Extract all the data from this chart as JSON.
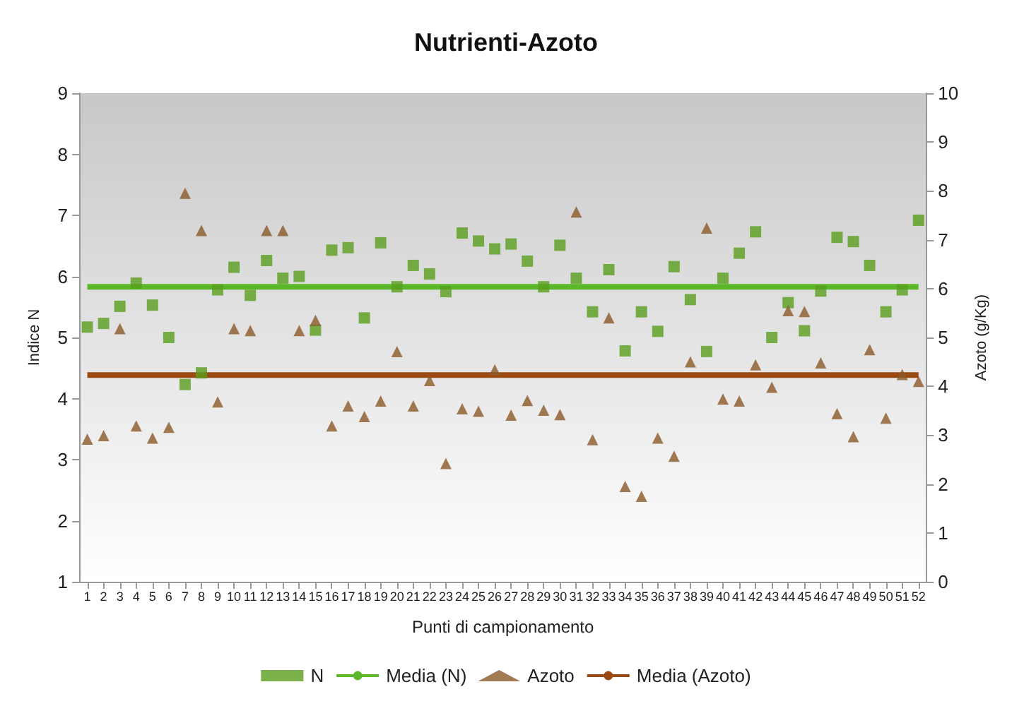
{
  "chart_data": {
    "type": "scatter",
    "title": "Nutrienti-Azoto",
    "xlabel": "Punti di campionamento",
    "ylabel": "Indice N",
    "y2label": "Azoto (g/Kg)",
    "categories": [
      "1",
      "2",
      "3",
      "4",
      "5",
      "6",
      "7",
      "8",
      "9",
      "10",
      "11",
      "12",
      "13",
      "14",
      "15",
      "16",
      "17",
      "18",
      "19",
      "20",
      "21",
      "22",
      "23",
      "24",
      "25",
      "26",
      "27",
      "28",
      "29",
      "30",
      "31",
      "32",
      "33",
      "34",
      "35",
      "36",
      "37",
      "38",
      "39",
      "40",
      "41",
      "42",
      "43",
      "44",
      "45",
      "46",
      "47",
      "48",
      "49",
      "50",
      "51",
      "52"
    ],
    "ylim": [
      1,
      9
    ],
    "yticks": [
      1,
      2,
      3,
      4,
      5,
      6,
      7,
      8,
      9
    ],
    "y2lim": [
      0,
      10
    ],
    "y2ticks": [
      0,
      1,
      2,
      3,
      4,
      5,
      6,
      7,
      8,
      9,
      10
    ],
    "grid": false,
    "legend": "bottom",
    "series": [
      {
        "name": "N",
        "marker": "square",
        "color": "#5a9e1e",
        "values": [
          5.17,
          5.23,
          5.51,
          5.89,
          5.53,
          5.0,
          4.23,
          4.42,
          5.78,
          6.15,
          5.69,
          6.26,
          5.97,
          6.0,
          5.12,
          6.43,
          6.47,
          5.32,
          6.55,
          5.83,
          6.18,
          6.04,
          5.75,
          6.71,
          6.58,
          6.45,
          6.53,
          6.25,
          5.83,
          6.51,
          5.97,
          5.42,
          6.11,
          4.78,
          5.42,
          5.1,
          6.16,
          5.62,
          4.77,
          5.97,
          6.38,
          6.73,
          5.0,
          5.57,
          5.11,
          5.76,
          6.64,
          6.57,
          6.18,
          5.42,
          5.78,
          6.92
        ]
      },
      {
        "name": "Media (N)",
        "type": "line",
        "marker": "none",
        "color": "#5cb82a",
        "x": [
          "1",
          "52"
        ],
        "values": [
          5.83,
          5.83
        ]
      },
      {
        "name": "Azoto",
        "marker": "triangle",
        "axis": "y2",
        "color": "#8b5a2b",
        "values": [
          2.92,
          2.99,
          5.18,
          3.19,
          2.94,
          3.16,
          7.95,
          7.19,
          3.68,
          5.18,
          5.14,
          7.19,
          7.19,
          5.14,
          5.35,
          3.19,
          3.6,
          3.38,
          3.7,
          4.71,
          3.6,
          4.12,
          2.42,
          3.54,
          3.49,
          4.34,
          3.41,
          3.71,
          3.51,
          3.42,
          7.57,
          2.91,
          5.4,
          1.95,
          1.75,
          2.94,
          2.57,
          4.5,
          7.24,
          3.74,
          3.7,
          4.44,
          3.98,
          5.55,
          5.53,
          4.48,
          3.44,
          2.97,
          4.75,
          3.35,
          4.24,
          4.1
        ]
      },
      {
        "name": "Media (Azoto)",
        "type": "line",
        "marker": "none",
        "axis": "y2",
        "color": "#9c4a12",
        "x": [
          "1",
          "52"
        ],
        "values": [
          4.23,
          4.23
        ]
      }
    ]
  }
}
